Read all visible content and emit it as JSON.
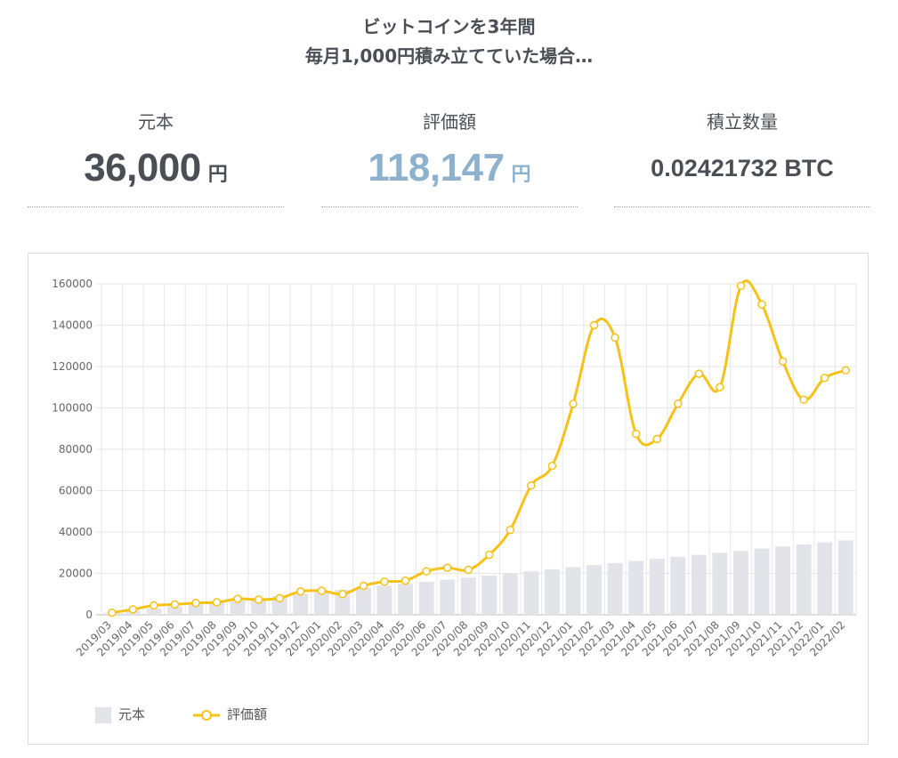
{
  "headline": {
    "line1": "ビットコインを3年間",
    "line2": "毎月1,000円積み立てていた場合…"
  },
  "stats": {
    "principal": {
      "label": "元本",
      "value": "36,000",
      "unit": "円",
      "color": "#4a4f55"
    },
    "valuation": {
      "label": "評価額",
      "value": "118,147",
      "unit": "円",
      "color": "#8eb2cd"
    },
    "quantity": {
      "label": "積立数量",
      "value": "0.02421732 BTC"
    }
  },
  "chart_data": {
    "type": "bar",
    "categories": [
      "2019/03",
      "2019/04",
      "2019/05",
      "2019/06",
      "2019/07",
      "2019/08",
      "2019/09",
      "2019/10",
      "2019/11",
      "2019/12",
      "2020/01",
      "2020/02",
      "2020/03",
      "2020/04",
      "2020/05",
      "2020/06",
      "2020/07",
      "2020/08",
      "2020/09",
      "2020/10",
      "2020/11",
      "2020/12",
      "2021/01",
      "2021/02",
      "2021/03",
      "2021/04",
      "2021/05",
      "2021/06",
      "2021/07",
      "2021/08",
      "2021/09",
      "2021/10",
      "2021/11",
      "2021/12",
      "2022/01",
      "2022/02"
    ],
    "series": [
      {
        "name": "元本",
        "type": "bar",
        "color": "#e3e3ea",
        "values": [
          1000,
          2000,
          3000,
          4000,
          5000,
          6000,
          7000,
          8000,
          9000,
          10000,
          11000,
          12000,
          13000,
          14000,
          15000,
          16000,
          17000,
          18000,
          19000,
          20000,
          21000,
          22000,
          23000,
          24000,
          25000,
          26000,
          27000,
          28000,
          29000,
          30000,
          31000,
          32000,
          33000,
          34000,
          35000,
          36000
        ]
      },
      {
        "name": "評価額",
        "type": "line",
        "color": "#f5c219",
        "values": [
          1000,
          2600,
          4500,
          5000,
          5700,
          6000,
          7700,
          7300,
          8000,
          11300,
          11600,
          10000,
          14000,
          16000,
          16500,
          21000,
          22700,
          21700,
          29000,
          41000,
          62500,
          72000,
          102000,
          140000,
          134000,
          87500,
          85000,
          102000,
          116500,
          110000,
          159000,
          150000,
          122500,
          104000,
          114500,
          118147
        ]
      }
    ],
    "ylim": [
      0,
      160000
    ],
    "yticks": [
      0,
      20000,
      40000,
      60000,
      80000,
      100000,
      120000,
      140000,
      160000
    ],
    "grid": true,
    "legend_position": "bottom-left"
  }
}
